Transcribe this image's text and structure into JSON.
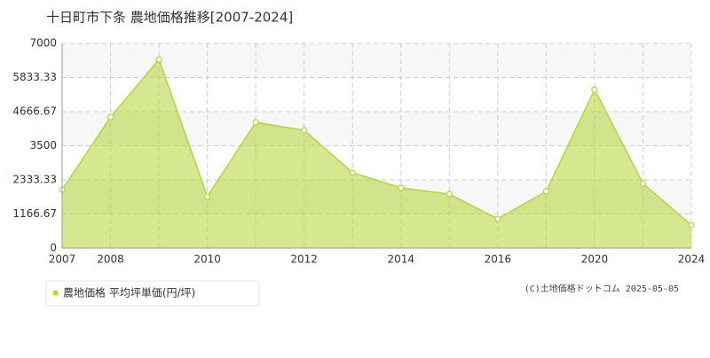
{
  "chart_data": {
    "type": "area",
    "title": "十日町市下条 農地価格推移[2007-2024]",
    "categories": [
      "2007",
      "2008",
      null,
      "2010",
      null,
      "2012",
      null,
      "2014",
      null,
      "2016",
      null,
      "2020",
      null,
      "2024"
    ],
    "series": [
      {
        "name": "農地価格 平均坪単価(円/坪)",
        "color": "#b5d633",
        "values": [
          2000,
          4480,
          6450,
          1760,
          4300,
          4030,
          2580,
          2060,
          1850,
          1000,
          1940,
          5420,
          2210,
          790
        ]
      }
    ],
    "ylim": [
      0,
      7000
    ],
    "yticks": [
      0,
      1166.67,
      2333.33,
      3500,
      4666.67,
      5833.33,
      7000
    ],
    "grid": true,
    "source": "(C)土地価格ドットコム 2025-05-05"
  }
}
